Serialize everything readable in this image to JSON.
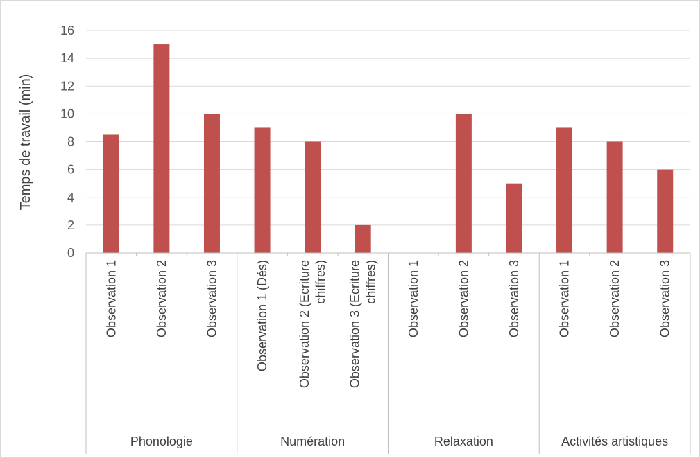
{
  "chart_data": {
    "type": "bar",
    "title": "",
    "xlabel": "",
    "ylabel": "Temps de travail (min)",
    "ylim": [
      0,
      16
    ],
    "y_ticks": [
      0,
      2,
      4,
      6,
      8,
      10,
      12,
      14,
      16
    ],
    "grid": true,
    "legend": "none",
    "bar_color": "#c0504d",
    "groups": [
      {
        "name": "Phonologie",
        "categories": [
          "Observation 1",
          "Observation 2",
          "Observation 3"
        ],
        "values": [
          8.5,
          15,
          10
        ]
      },
      {
        "name": "Numération",
        "categories": [
          "Observation 1 (Dés)",
          "Observation 2 (Ecriture chiffres)",
          "Observation 3 (Ecriture chiffres)"
        ],
        "values": [
          9,
          8,
          2
        ]
      },
      {
        "name": "Relaxation",
        "categories": [
          "Observation 1",
          "Observation 2",
          "Observation 3"
        ],
        "values": [
          0,
          10,
          5
        ]
      },
      {
        "name": "Activités artistiques",
        "categories": [
          "Observation 1",
          "Observation 2",
          "Observation 3"
        ],
        "values": [
          9,
          8,
          6
        ]
      }
    ]
  }
}
